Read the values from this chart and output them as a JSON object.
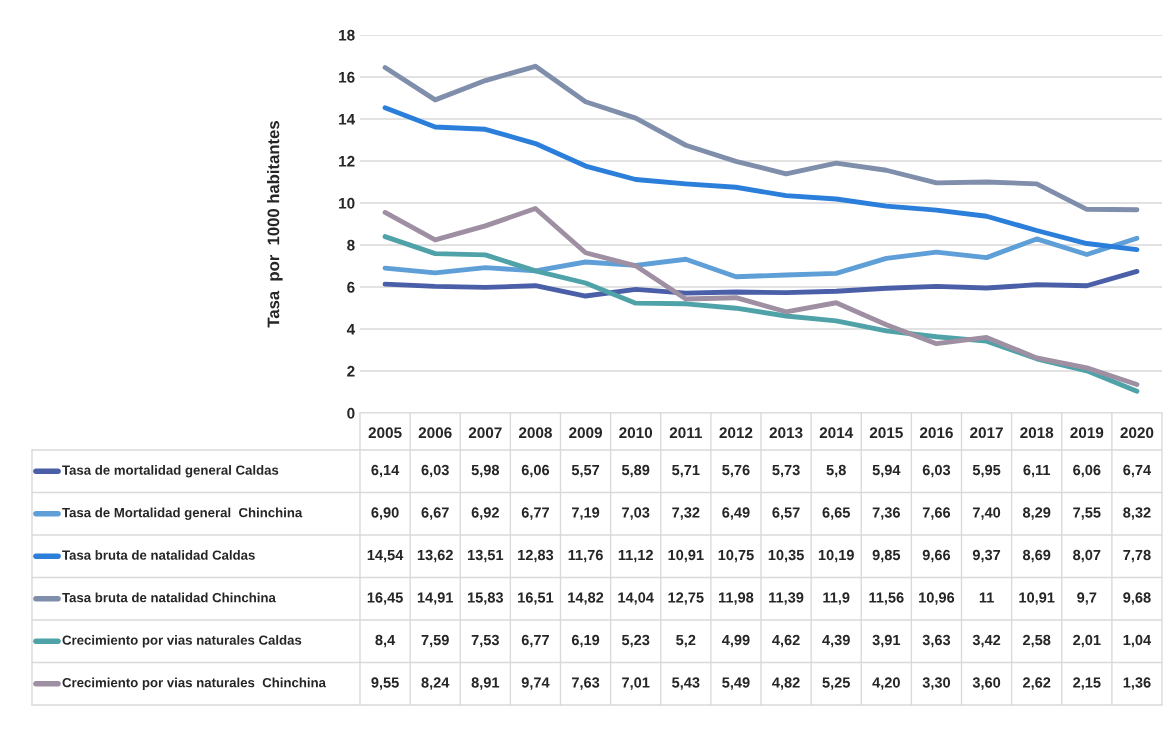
{
  "chart_data": {
    "type": "line",
    "ylabel": "Tasa  por  1000 habitantes",
    "categories": [
      "2005",
      "2006",
      "2007",
      "2008",
      "2009",
      "2010",
      "2011",
      "2012",
      "2013",
      "2014",
      "2015",
      "2016",
      "2017",
      "2018",
      "2019",
      "2020"
    ],
    "ylim": [
      0,
      18
    ],
    "yticks": [
      0,
      2,
      4,
      6,
      8,
      10,
      12,
      14,
      16,
      18
    ],
    "grid": "y",
    "legend": "bottom",
    "line_style": "solid",
    "marker": "none",
    "series": [
      {
        "name": "Tasa de mortalidad general Caldas",
        "color": "#4a5fa8",
        "values": [
          6.14,
          6.03,
          5.98,
          6.06,
          5.57,
          5.89,
          5.71,
          5.76,
          5.73,
          5.8,
          5.94,
          6.03,
          5.95,
          6.11,
          6.06,
          6.74
        ],
        "value_labels": [
          "6,14",
          "6,03",
          "5,98",
          "6,06",
          "5,57",
          "5,89",
          "5,71",
          "5,76",
          "5,73",
          "5,8",
          "5,94",
          "6,03",
          "5,95",
          "6,11",
          "6,06",
          "6,74"
        ]
      },
      {
        "name": "Tasa de Mortalidad general  Chinchina",
        "color": "#5f9fd8",
        "values": [
          6.9,
          6.67,
          6.92,
          6.77,
          7.19,
          7.03,
          7.32,
          6.49,
          6.57,
          6.65,
          7.36,
          7.66,
          7.4,
          8.29,
          7.55,
          8.32
        ],
        "value_labels": [
          "6,90",
          "6,67",
          "6,92",
          "6,77",
          "7,19",
          "7,03",
          "7,32",
          "6,49",
          "6,57",
          "6,65",
          "7,36",
          "7,66",
          "7,40",
          "8,29",
          "7,55",
          "8,32"
        ]
      },
      {
        "name": "Tasa bruta de natalidad Caldas",
        "color": "#2b7fdb",
        "values": [
          14.54,
          13.62,
          13.51,
          12.83,
          11.76,
          11.12,
          10.91,
          10.75,
          10.35,
          10.19,
          9.85,
          9.66,
          9.37,
          8.69,
          8.07,
          7.78
        ],
        "value_labels": [
          "14,54",
          "13,62",
          "13,51",
          "12,83",
          "11,76",
          "11,12",
          "10,91",
          "10,75",
          "10,35",
          "10,19",
          "9,85",
          "9,66",
          "9,37",
          "8,69",
          "8,07",
          "7,78"
        ]
      },
      {
        "name": "Tasa bruta de natalidad Chinchina",
        "color": "#7f8eab",
        "values": [
          16.45,
          14.91,
          15.83,
          16.51,
          14.82,
          14.04,
          12.75,
          11.98,
          11.39,
          11.9,
          11.56,
          10.96,
          11,
          10.91,
          9.7,
          9.68
        ],
        "value_labels": [
          "16,45",
          "14,91",
          "15,83",
          "16,51",
          "14,82",
          "14,04",
          "12,75",
          "11,98",
          "11,39",
          "11,9",
          "11,56",
          "10,96",
          "11",
          "10,91",
          "9,7",
          "9,68"
        ]
      },
      {
        "name": "Crecimiento por vias naturales Caldas",
        "color": "#4fa3a8",
        "values": [
          8.4,
          7.59,
          7.53,
          6.77,
          6.19,
          5.23,
          5.2,
          4.99,
          4.62,
          4.39,
          3.91,
          3.63,
          3.42,
          2.58,
          2.01,
          1.04
        ],
        "value_labels": [
          "8,4",
          "7,59",
          "7,53",
          "6,77",
          "6,19",
          "5,23",
          "5,2",
          "4,99",
          "4,62",
          "4,39",
          "3,91",
          "3,63",
          "3,42",
          "2,58",
          "2,01",
          "1,04"
        ]
      },
      {
        "name": "Crecimiento por vias naturales  Chinchina",
        "color": "#9e8fa2",
        "values": [
          9.55,
          8.24,
          8.91,
          9.74,
          7.63,
          7.01,
          5.43,
          5.49,
          4.82,
          5.25,
          4.2,
          3.3,
          3.6,
          2.62,
          2.15,
          1.36
        ],
        "value_labels": [
          "9,55",
          "8,24",
          "8,91",
          "9,74",
          "7,63",
          "7,01",
          "5,43",
          "5,49",
          "4,82",
          "5,25",
          "4,20",
          "3,30",
          "3,60",
          "2,62",
          "2,15",
          "1,36"
        ]
      }
    ]
  }
}
